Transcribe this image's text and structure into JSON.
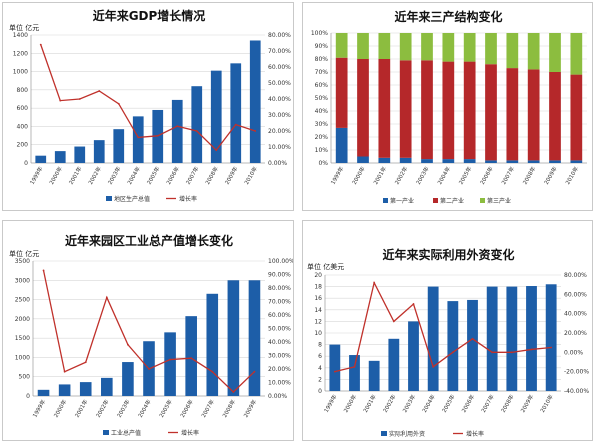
{
  "colors": {
    "bar": "#1d5ea8",
    "line": "#c0312b",
    "primary": "#1d5ea8",
    "secondary": "#b5282a",
    "tertiary": "#8cbd3f",
    "grid": "#d7d7d7"
  },
  "chart_data": [
    {
      "type": "bar",
      "title": "近年来GDP增长情况",
      "ylabel": "单位 亿元",
      "ylim": [
        0,
        1400
      ],
      "ylim_right": [
        0,
        80
      ],
      "y_ticks": [
        "0",
        "200",
        "400",
        "600",
        "800",
        "1000",
        "1200",
        "1400"
      ],
      "y_right_ticks": [
        "0.00%",
        "10.00%",
        "20.00%",
        "30.00%",
        "40.00%",
        "50.00%",
        "60.00%",
        "70.00%",
        "80.00%"
      ],
      "categories": [
        "1999年",
        "2000年",
        "2001年",
        "2002年",
        "2003年",
        "2004年",
        "2005年",
        "2006年",
        "2007年",
        "2008年",
        "2009年",
        "2010年"
      ],
      "series": [
        {
          "name": "地区生产总值",
          "type": "bar",
          "axis": "left",
          "values": [
            80,
            130,
            180,
            250,
            370,
            510,
            580,
            690,
            840,
            1010,
            1090,
            1340
          ]
        },
        {
          "name": "增长率",
          "type": "line",
          "axis": "right",
          "values": [
            74,
            39,
            40,
            45,
            37,
            16,
            17,
            23,
            20,
            8,
            24,
            20
          ]
        }
      ]
    },
    {
      "type": "bar",
      "stacked": true,
      "title": "近年来三产结构变化",
      "ylim": [
        0,
        100
      ],
      "y_ticks": [
        "0%",
        "10%",
        "20%",
        "30%",
        "40%",
        "50%",
        "60%",
        "70%",
        "80%",
        "90%",
        "100%"
      ],
      "categories": [
        "1999年",
        "2000年",
        "2001年",
        "2002年",
        "2003年",
        "2004年",
        "2005年",
        "2006年",
        "2007年",
        "2008年",
        "2009年",
        "2010年"
      ],
      "series": [
        {
          "name": "第一产业",
          "values": [
            27,
            5,
            4,
            4,
            3,
            3,
            3,
            2,
            2,
            2,
            2,
            2
          ]
        },
        {
          "name": "第二产业",
          "values": [
            54,
            75,
            76,
            75,
            76,
            75,
            75,
            74,
            71,
            70,
            68,
            66
          ]
        },
        {
          "name": "第三产业",
          "values": [
            19,
            20,
            20,
            21,
            21,
            22,
            22,
            24,
            27,
            28,
            30,
            32
          ]
        }
      ]
    },
    {
      "type": "bar",
      "title": "近年来园区工业总产值增长变化",
      "ylabel": "单位 亿元",
      "ylim": [
        0,
        3500
      ],
      "ylim_right": [
        0,
        100
      ],
      "y_ticks": [
        "0",
        "500",
        "1000",
        "1500",
        "2000",
        "2500",
        "3000",
        "3500"
      ],
      "y_right_ticks": [
        "0.00%",
        "10.00%",
        "20.00%",
        "30.00%",
        "40.00%",
        "50.00%",
        "60.00%",
        "70.00%",
        "80.00%",
        "90.00%",
        "100.00%"
      ],
      "categories": [
        "1999年",
        "2000年",
        "2001年",
        "2002年",
        "2003年",
        "2004年",
        "2005年",
        "2006年",
        "2007年",
        "2008年",
        "2009年"
      ],
      "series": [
        {
          "name": "工业总产值",
          "type": "bar",
          "axis": "left",
          "values": [
            160,
            300,
            360,
            470,
            880,
            1420,
            1650,
            2070,
            2650,
            3000,
            3000
          ]
        },
        {
          "name": "增长率",
          "type": "line",
          "axis": "right",
          "values": [
            93,
            18,
            25,
            73,
            38,
            20,
            27,
            28,
            18,
            3,
            18
          ]
        }
      ]
    },
    {
      "type": "bar",
      "title": "近年来实际利用外资变化",
      "ylabel": "单位 亿美元",
      "ylim": [
        0,
        20
      ],
      "ylim_right": [
        -40,
        80
      ],
      "y_ticks": [
        "0",
        "2",
        "4",
        "6",
        "8",
        "10",
        "12",
        "14",
        "16",
        "18",
        "20"
      ],
      "y_right_ticks": [
        "-40.00%",
        "-20.00%",
        "0.00%",
        "20.00%",
        "40.00%",
        "60.00%",
        "80.00%"
      ],
      "categories": [
        "1999年",
        "2000年",
        "2001年",
        "2002年",
        "2003年",
        "2004年",
        "2005年",
        "2006年",
        "2007年",
        "2008年",
        "2009年",
        "2010年"
      ],
      "series": [
        {
          "name": "实际利用外资",
          "type": "bar",
          "axis": "left",
          "values": [
            8,
            6.2,
            5.2,
            9,
            12,
            18,
            15.5,
            15.7,
            18,
            18,
            18.1,
            18.4
          ]
        },
        {
          "name": "增长率",
          "type": "line",
          "axis": "right",
          "values": [
            -20,
            -15,
            72,
            32,
            50,
            -15,
            0,
            14,
            0,
            0,
            3,
            5
          ]
        }
      ]
    }
  ]
}
